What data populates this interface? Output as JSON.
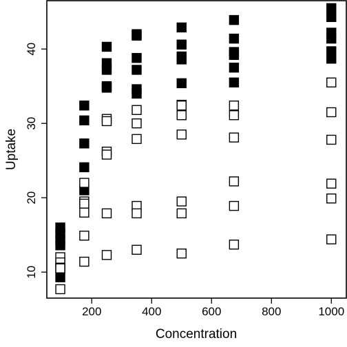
{
  "chart_data": {
    "type": "scatter",
    "title": "",
    "xlabel": "Concentration",
    "ylabel": "Uptake",
    "xlim": [
      50,
      1050
    ],
    "ylim": [
      6.5,
      46.5
    ],
    "x_ticks": [
      200,
      400,
      600,
      800,
      1000
    ],
    "y_ticks": [
      10,
      20,
      30,
      40
    ],
    "grid": false,
    "series": [
      {
        "marker": "filled-square",
        "color": "#000000",
        "points": [
          [
            95,
            16.0
          ],
          [
            95,
            15.2
          ],
          [
            95,
            14.4
          ],
          [
            95,
            13.6
          ],
          [
            95,
            10.6
          ],
          [
            95,
            9.3
          ],
          [
            175,
            32.4
          ],
          [
            175,
            30.4
          ],
          [
            175,
            27.3
          ],
          [
            175,
            24.1
          ],
          [
            175,
            21.0
          ],
          [
            250,
            40.3
          ],
          [
            250,
            38.1
          ],
          [
            250,
            37.2
          ],
          [
            250,
            35.0
          ],
          [
            250,
            34.8
          ],
          [
            350,
            42.0
          ],
          [
            350,
            41.8
          ],
          [
            350,
            38.8
          ],
          [
            350,
            37.2
          ],
          [
            350,
            34.6
          ],
          [
            350,
            34.0
          ],
          [
            500,
            42.9
          ],
          [
            500,
            40.6
          ],
          [
            500,
            39.0
          ],
          [
            500,
            38.6
          ],
          [
            500,
            35.4
          ],
          [
            675,
            43.9
          ],
          [
            675,
            41.4
          ],
          [
            675,
            39.6
          ],
          [
            675,
            39.2
          ],
          [
            675,
            37.5
          ],
          [
            675,
            35.5
          ],
          [
            1000,
            45.5
          ],
          [
            1000,
            44.3
          ],
          [
            1000,
            42.2
          ],
          [
            1000,
            41.4
          ],
          [
            1000,
            39.7
          ],
          [
            1000,
            38.7
          ]
        ]
      },
      {
        "marker": "open-square",
        "color": "#000000",
        "points": [
          [
            95,
            12.0
          ],
          [
            95,
            11.3
          ],
          [
            95,
            10.6
          ],
          [
            95,
            10.5
          ],
          [
            95,
            7.7
          ],
          [
            175,
            22.0
          ],
          [
            175,
            19.5
          ],
          [
            175,
            19.2
          ],
          [
            175,
            18.0
          ],
          [
            175,
            14.9
          ],
          [
            175,
            11.4
          ],
          [
            250,
            30.6
          ],
          [
            250,
            30.3
          ],
          [
            250,
            26.2
          ],
          [
            250,
            25.8
          ],
          [
            250,
            17.9
          ],
          [
            250,
            12.3
          ],
          [
            350,
            31.8
          ],
          [
            350,
            30.0
          ],
          [
            350,
            27.9
          ],
          [
            350,
            18.9
          ],
          [
            350,
            17.9
          ],
          [
            350,
            13.0
          ],
          [
            500,
            32.5
          ],
          [
            500,
            32.4
          ],
          [
            500,
            31.1
          ],
          [
            500,
            28.5
          ],
          [
            500,
            19.5
          ],
          [
            500,
            17.9
          ],
          [
            500,
            12.5
          ],
          [
            675,
            32.4
          ],
          [
            675,
            31.1
          ],
          [
            675,
            28.1
          ],
          [
            675,
            22.2
          ],
          [
            675,
            18.9
          ],
          [
            675,
            13.7
          ],
          [
            1000,
            35.5
          ],
          [
            1000,
            31.5
          ],
          [
            1000,
            27.8
          ],
          [
            1000,
            21.9
          ],
          [
            1000,
            19.9
          ],
          [
            1000,
            14.4
          ]
        ]
      }
    ]
  }
}
